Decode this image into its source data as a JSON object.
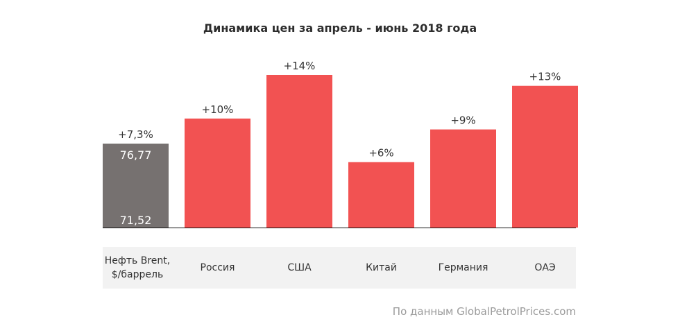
{
  "chart_data": {
    "type": "bar",
    "title": "Динамика цен за апрель - июнь 2018 года",
    "xlabel": "",
    "ylabel": "",
    "categories": [
      "Нефть Brent,\n$/баррель",
      "Россия",
      "США",
      "Китай",
      "Германия",
      "ОАЭ"
    ],
    "values": [
      7.3,
      10,
      14,
      6,
      9,
      13
    ],
    "value_labels": [
      "+7,3%",
      "+10%",
      "+14%",
      "+6%",
      "+9%",
      "+13%"
    ],
    "brent": {
      "price_start_label": "71,52",
      "price_end_label": "76,77",
      "price_start": 71.52,
      "price_end": 76.77
    },
    "ylim": [
      0,
      14
    ],
    "grid": false,
    "legend": "none",
    "colors": {
      "brent": "#767170",
      "country": "#f25252",
      "baseline": "#111111",
      "category_band": "#f2f2f2"
    }
  },
  "source_note": "По данным GlobalPetrolPrices.com"
}
